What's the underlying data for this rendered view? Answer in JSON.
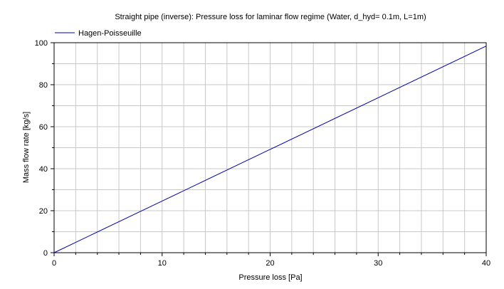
{
  "chart_data": {
    "type": "line",
    "title": "Straight pipe (inverse): Pressure loss for laminar flow regime (Water, d_hyd= 0.1m, L=1m)",
    "xlabel": "Pressure loss [Pa]",
    "ylabel": "Mass flow rate [kg/s]",
    "xlim": [
      0,
      40
    ],
    "ylim": [
      0,
      100
    ],
    "xticks": [
      0,
      10,
      20,
      30,
      40
    ],
    "yticks": [
      0,
      20,
      40,
      60,
      80,
      100
    ],
    "grid": true,
    "legend_position": "top-left",
    "series": [
      {
        "name": "Hagen-Poisseuille",
        "color": "#0000aa",
        "x": [
          0,
          10,
          20,
          30,
          40
        ],
        "y": [
          0,
          24.6,
          49.2,
          73.8,
          98.4
        ]
      }
    ]
  }
}
